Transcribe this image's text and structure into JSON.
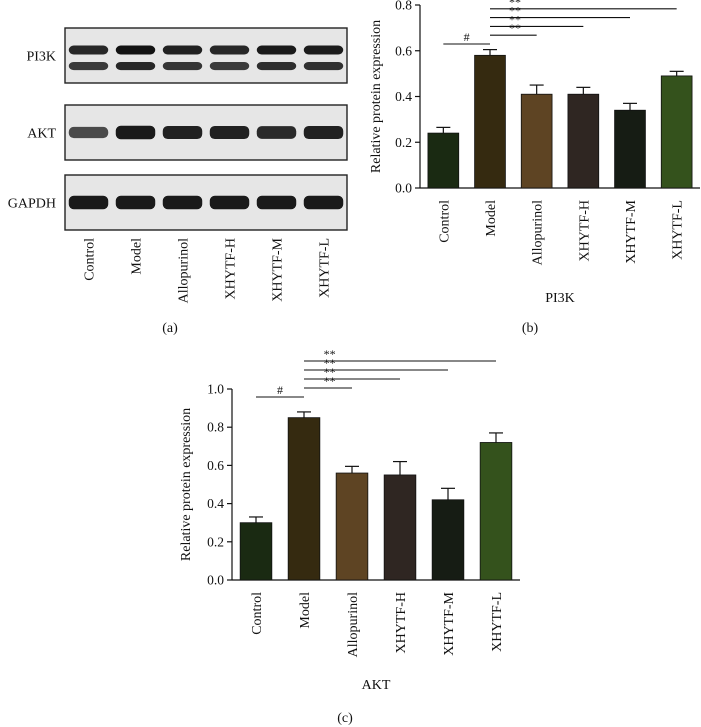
{
  "blot": {
    "rows": [
      {
        "label": "PI3K",
        "intensity": [
          0.8,
          0.95,
          0.85,
          0.8,
          0.9,
          0.88
        ]
      },
      {
        "label": "AKT",
        "intensity": [
          0.55,
          0.9,
          0.85,
          0.85,
          0.78,
          0.85
        ]
      },
      {
        "label": "GAPDH",
        "intensity": [
          0.9,
          0.9,
          0.9,
          0.9,
          0.9,
          0.9
        ]
      }
    ],
    "lanes": [
      "Control",
      "Model",
      "Allopurinol",
      "XHYTF-H",
      "XHYTF-M",
      "XHYTF-L"
    ],
    "panel_label": "(a)"
  },
  "chart_data": [
    {
      "type": "bar",
      "panel_label": "(b)",
      "categories": [
        "Control",
        "Model",
        "Allopurinol",
        "XHYTF-H",
        "XHYTF-M",
        "XHYTF-L"
      ],
      "values": [
        0.24,
        0.58,
        0.41,
        0.41,
        0.34,
        0.49
      ],
      "errors": [
        0.025,
        0.025,
        0.04,
        0.03,
        0.03,
        0.02
      ],
      "colors": [
        "#1a2a12",
        "#352a10",
        "#5e4423",
        "#2f2622",
        "#161c14",
        "#34521c"
      ],
      "ylabel": "Relative protein expression",
      "xlabel": "PI3K",
      "ylim": [
        0,
        0.8
      ],
      "yticks": [
        0.0,
        0.2,
        0.4,
        0.6,
        0.8
      ],
      "ytick_labels": [
        "0.0",
        "0.2",
        "0.4",
        "0.6",
        "0.8"
      ],
      "annotations": [
        {
          "from": 0,
          "to": 1,
          "label": "#"
        },
        {
          "from": 1,
          "to": 2,
          "label": "**"
        },
        {
          "from": 1,
          "to": 3,
          "label": "**"
        },
        {
          "from": 1,
          "to": 4,
          "label": "**"
        },
        {
          "from": 1,
          "to": 5,
          "label": "**"
        }
      ]
    },
    {
      "type": "bar",
      "panel_label": "(c)",
      "categories": [
        "Control",
        "Model",
        "Allopurinol",
        "XHYTF-H",
        "XHYTF-M",
        "XHYTF-L"
      ],
      "values": [
        0.3,
        0.85,
        0.56,
        0.55,
        0.42,
        0.72
      ],
      "errors": [
        0.03,
        0.03,
        0.035,
        0.07,
        0.06,
        0.05
      ],
      "colors": [
        "#1a2a12",
        "#352a10",
        "#5e4423",
        "#2f2622",
        "#161c14",
        "#34521c"
      ],
      "ylabel": "Relative protein expression",
      "xlabel": "AKT",
      "ylim": [
        0,
        1.0
      ],
      "yticks": [
        0.0,
        0.2,
        0.4,
        0.6,
        0.8,
        1.0
      ],
      "ytick_labels": [
        "0.0",
        "0.2",
        "0.4",
        "0.6",
        "0.8",
        "1.0"
      ],
      "annotations": [
        {
          "from": 0,
          "to": 1,
          "label": "#"
        },
        {
          "from": 1,
          "to": 2,
          "label": "**"
        },
        {
          "from": 1,
          "to": 3,
          "label": "**"
        },
        {
          "from": 1,
          "to": 4,
          "label": "**"
        },
        {
          "from": 1,
          "to": 5,
          "label": "**"
        }
      ]
    }
  ]
}
